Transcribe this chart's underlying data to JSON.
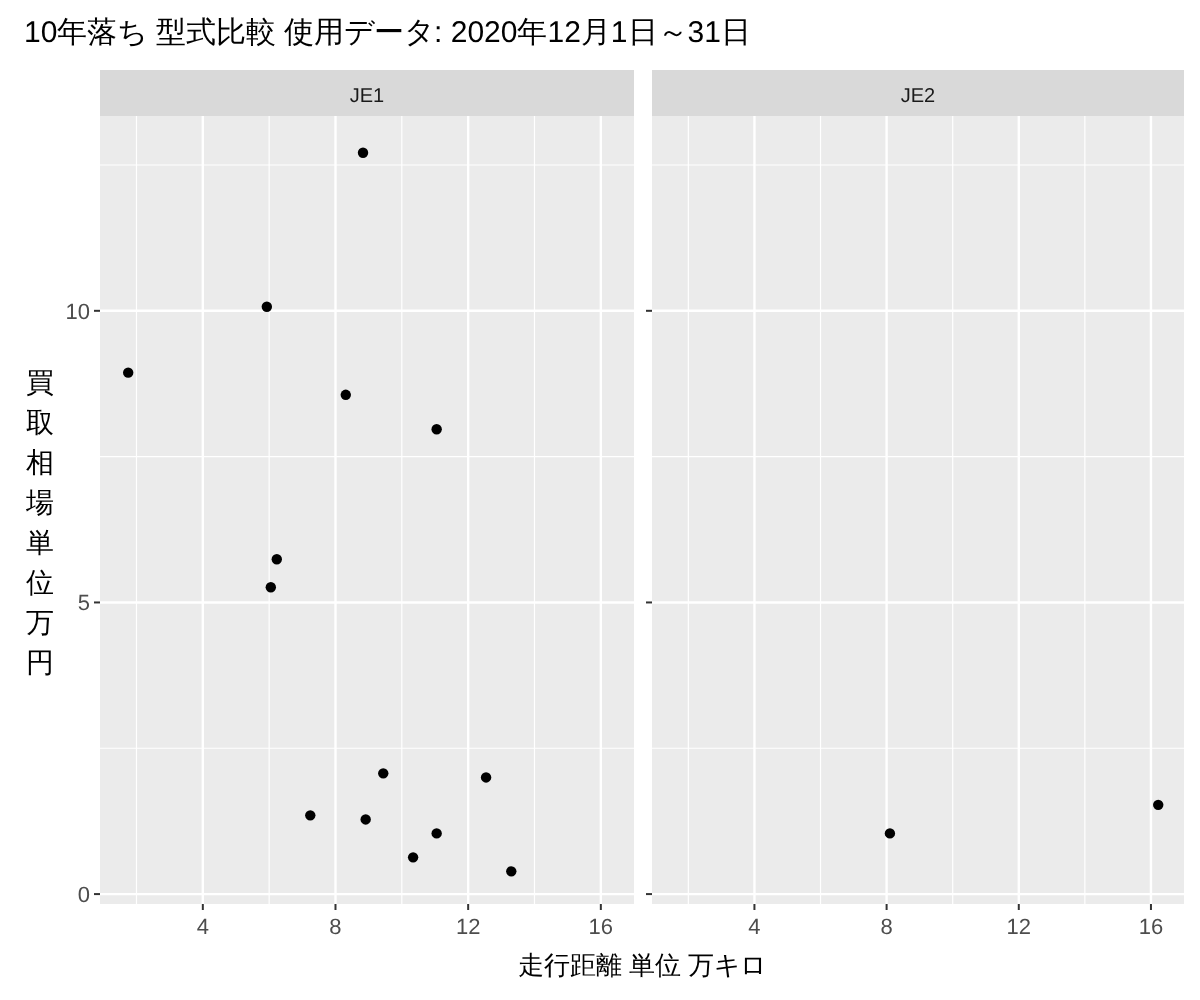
{
  "chart_data": [
    {
      "type": "scatter",
      "title": "10年落ち 型式比較 使用データ: 2020年12月1日～31日",
      "subtitle": "JE1",
      "xlabel": "走行距離 単位 万キロ",
      "ylabel": "買取相場単位万円",
      "x": [
        8.83,
        5.93,
        1.75,
        8.31,
        11.05,
        6.23,
        6.05,
        9.44,
        12.54,
        7.24,
        8.91,
        11.05,
        10.34,
        13.3
      ],
      "values": [
        12.71,
        10.07,
        8.94,
        8.56,
        7.97,
        5.74,
        5.26,
        2.07,
        2.0,
        1.35,
        1.28,
        1.04,
        0.63,
        0.39
      ],
      "color": "#000000",
      "marker": "circle",
      "grid": true,
      "xlim": [
        0.9,
        17.0
      ],
      "ylim": [
        -0.17,
        13.34
      ],
      "xticks": [
        4,
        8,
        12,
        16
      ],
      "yticks": [
        0,
        5,
        10
      ]
    },
    {
      "type": "scatter",
      "subtitle": "JE2",
      "x": [
        8.1,
        16.22
      ],
      "values": [
        1.04,
        1.53
      ],
      "color": "#000000",
      "marker": "circle",
      "grid": true,
      "xlim": [
        0.9,
        17.0
      ],
      "ylim": [
        -0.17,
        13.34
      ],
      "xticks": [
        4,
        8,
        12,
        16
      ],
      "yticks": [
        0,
        5,
        10
      ],
      "tick_labels": "x"
    }
  ]
}
